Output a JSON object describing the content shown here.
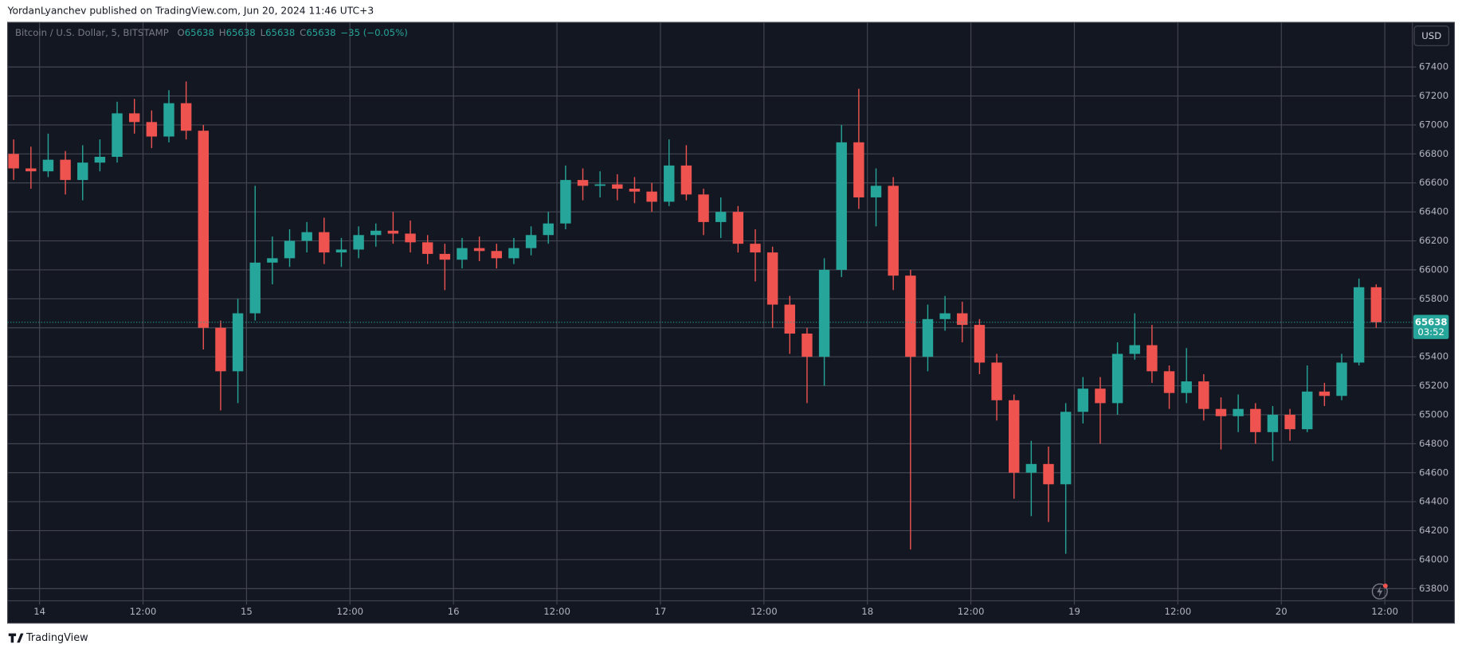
{
  "header": "YordanLyanchev published on TradingView.com, Jun 20, 2024 11:46 UTC+3",
  "footer": "TradingView",
  "chart_data": {
    "type": "candlestick",
    "symbol": "Bitcoin / U.S. Dollar, 5, BITSTAMP",
    "ohlc_legend": [
      {
        "label": "O",
        "value": 65638
      },
      {
        "label": "H",
        "value": 65638
      },
      {
        "label": "L",
        "value": 65638
      },
      {
        "label": "C",
        "value": 65638
      }
    ],
    "change": "−35 (−0.05%)",
    "currency": "USD",
    "last_price": 65638,
    "countdown": "03:52",
    "up_color": "#26a69a",
    "down_color": "#ef5350",
    "grid": true,
    "xlim": [
      -3.7,
      159.2
    ],
    "ylim": [
      63716,
      67708
    ],
    "xticks": [
      {
        "value": 0,
        "label": "14"
      },
      {
        "value": 12,
        "label": "12:00"
      },
      {
        "value": 24,
        "label": "15"
      },
      {
        "value": 36,
        "label": "12:00"
      },
      {
        "value": 48,
        "label": "16"
      },
      {
        "value": 60,
        "label": "12:00"
      },
      {
        "value": 72,
        "label": "17"
      },
      {
        "value": 84,
        "label": "12:00"
      },
      {
        "value": 96,
        "label": "18"
      },
      {
        "value": 108,
        "label": "12:00"
      },
      {
        "value": 120,
        "label": "19"
      },
      {
        "value": 132,
        "label": "12:00"
      },
      {
        "value": 144,
        "label": "20"
      },
      {
        "value": 156,
        "label": "12:00"
      }
    ],
    "yticks": [
      63800,
      64000,
      64200,
      64400,
      64600,
      64800,
      65000,
      65200,
      65400,
      65600,
      65800,
      66000,
      66200,
      66400,
      66600,
      66800,
      67000,
      67200,
      67400
    ],
    "x": [
      -3,
      -1,
      1,
      3,
      5,
      7,
      9,
      11,
      13,
      15,
      17,
      19,
      21,
      23,
      25,
      27,
      29,
      31,
      33,
      35,
      37,
      39,
      41,
      43,
      45,
      47,
      49,
      51,
      53,
      55,
      57,
      59,
      61,
      63,
      65,
      67,
      69,
      71,
      73,
      75,
      77,
      79,
      81,
      83,
      85,
      87,
      89,
      91,
      93,
      95,
      97,
      99,
      101,
      103,
      105,
      107,
      109,
      111,
      113,
      115,
      117,
      119,
      121,
      123,
      125,
      127,
      129,
      131,
      133,
      135,
      137,
      139,
      141,
      143,
      145,
      147,
      149,
      151,
      153,
      155
    ],
    "open": [
      66800,
      66700,
      66680,
      66760,
      66620,
      66740,
      66780,
      67080,
      67020,
      66920,
      67150,
      66960,
      65600,
      65300,
      65700,
      66050,
      66080,
      66200,
      66260,
      66120,
      66140,
      66240,
      66270,
      66250,
      66190,
      66110,
      66070,
      66150,
      66130,
      66080,
      66150,
      66240,
      66320,
      66620,
      66580,
      66590,
      66560,
      66540,
      66470,
      66720,
      66520,
      66330,
      66400,
      66180,
      66120,
      65760,
      65560,
      65400,
      66000,
      66880,
      66500,
      66580,
      65960,
      65400,
      65660,
      65700,
      65620,
      65360,
      65100,
      64600,
      64660,
      64520,
      65020,
      65180,
      65080,
      65420,
      65480,
      65300,
      65150,
      65230,
      65040,
      64990,
      65040,
      64880,
      65000,
      64900,
      65160,
      65130,
      65360,
      65880
    ],
    "high": [
      66900,
      66850,
      66940,
      66820,
      66860,
      66900,
      67160,
      67180,
      67100,
      67240,
      67300,
      67000,
      65650,
      65800,
      66580,
      66230,
      66280,
      66330,
      66360,
      66220,
      66300,
      66320,
      66400,
      66340,
      66240,
      66180,
      66220,
      66230,
      66180,
      66220,
      66300,
      66400,
      66720,
      66700,
      66680,
      66660,
      66640,
      66600,
      66900,
      66860,
      66560,
      66500,
      66440,
      66280,
      66160,
      65820,
      65600,
      66080,
      67000,
      67250,
      66700,
      66640,
      66000,
      65760,
      65820,
      65780,
      65660,
      65420,
      65140,
      64820,
      64780,
      65080,
      65260,
      65260,
      65500,
      65700,
      65620,
      65340,
      65460,
      65280,
      65120,
      65140,
      65080,
      65060,
      65040,
      65340,
      65220,
      65420,
      65940,
      65900
    ],
    "low": [
      66620,
      66560,
      66640,
      66520,
      66480,
      66680,
      66740,
      66940,
      66840,
      66880,
      66900,
      65450,
      65030,
      65080,
      65650,
      65900,
      66020,
      66120,
      66040,
      66020,
      66080,
      66160,
      66180,
      66120,
      66040,
      65860,
      66010,
      66060,
      66010,
      66040,
      66100,
      66180,
      66280,
      66480,
      66500,
      66480,
      66460,
      66400,
      66440,
      66480,
      66240,
      66220,
      66120,
      65920,
      65600,
      65420,
      65080,
      65200,
      65950,
      66420,
      66300,
      65860,
      64070,
      65300,
      65580,
      65500,
      65280,
      64960,
      64420,
      64300,
      64260,
      64040,
      64940,
      64800,
      65000,
      65380,
      65220,
      65040,
      65080,
      64960,
      64760,
      64880,
      64800,
      64680,
      64820,
      64880,
      65060,
      65100,
      65340,
      65600
    ],
    "close": [
      66700,
      66680,
      66760,
      66620,
      66740,
      66780,
      67080,
      67020,
      66920,
      67150,
      66960,
      65600,
      65300,
      65700,
      66050,
      66080,
      66200,
      66260,
      66120,
      66140,
      66240,
      66270,
      66250,
      66190,
      66110,
      66070,
      66150,
      66130,
      66080,
      66150,
      66240,
      66320,
      66620,
      66580,
      66590,
      66560,
      66540,
      66470,
      66720,
      66520,
      66330,
      66400,
      66180,
      66120,
      65760,
      65560,
      65400,
      66000,
      66880,
      66500,
      66580,
      65960,
      65400,
      65660,
      65700,
      65620,
      65360,
      65100,
      64600,
      64660,
      64520,
      65020,
      65180,
      65080,
      65420,
      65480,
      65300,
      65150,
      65230,
      65040,
      64990,
      65040,
      64880,
      65000,
      64900,
      65160,
      65130,
      65360,
      65880,
      65638
    ]
  }
}
